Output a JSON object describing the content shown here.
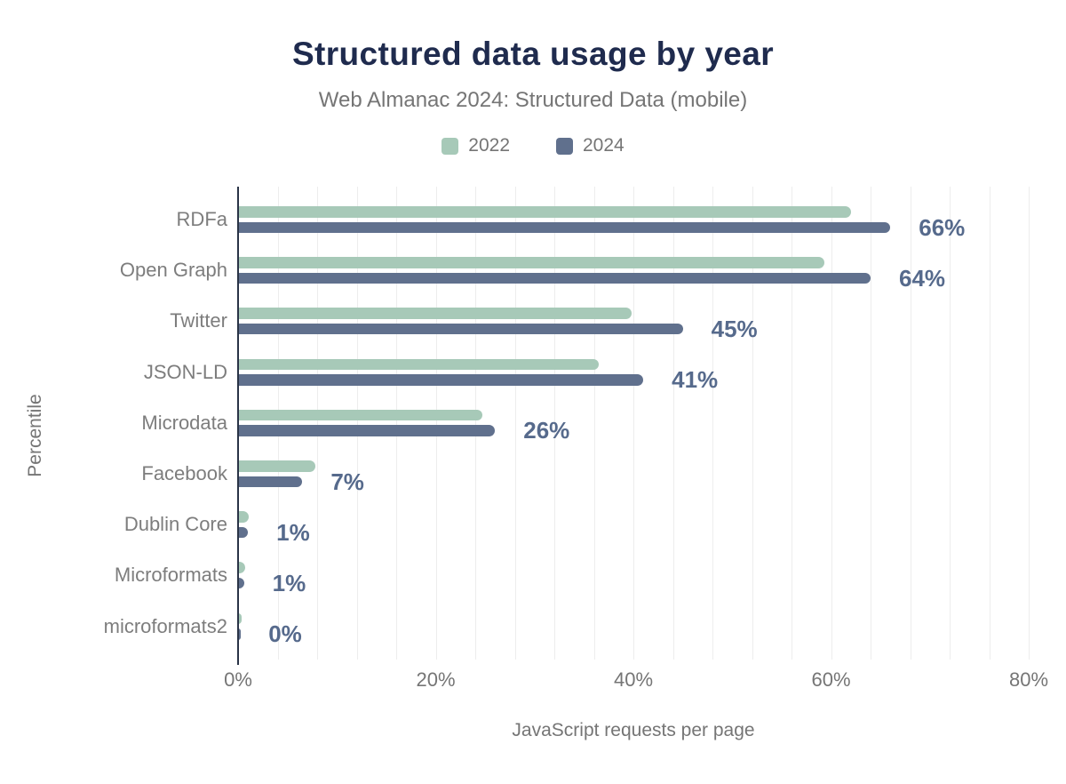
{
  "chart_data": {
    "type": "bar",
    "orientation": "horizontal",
    "title": "Structured data usage by year",
    "subtitle": "Web Almanac 2024: Structured Data (mobile)",
    "xlabel": "JavaScript requests per page",
    "ylabel": "Percentile",
    "categories": [
      "RDFa",
      "Open Graph",
      "Twitter",
      "JSON-LD",
      "Microdata",
      "Facebook",
      "Dublin Core",
      "Microformats",
      "microformats2"
    ],
    "series": [
      {
        "name": "2022",
        "color": "#a7c9b8",
        "values": [
          62,
          59.3,
          39.8,
          36.5,
          24.7,
          7.8,
          1.1,
          0.7,
          0.4
        ]
      },
      {
        "name": "2024",
        "color": "#60708d",
        "values": [
          66,
          64,
          45,
          41,
          26,
          6.5,
          1,
          0.6,
          0.2
        ]
      }
    ],
    "annotations": [
      "66%",
      "64%",
      "45%",
      "41%",
      "26%",
      "7%",
      "1%",
      "1%",
      "0%"
    ],
    "x_ticks": [
      "0%",
      "20%",
      "40%",
      "60%",
      "80%"
    ],
    "xlim": [
      0,
      80
    ],
    "grid": "vertical minor gridlines every 4%",
    "legend_position": "top-center"
  },
  "colors": {
    "title": "#1f2b4e",
    "muted_text": "#757575",
    "annotation": "#566a8c",
    "axis_line": "#2a3447",
    "gridline": "#ededed",
    "background": "#ffffff"
  }
}
